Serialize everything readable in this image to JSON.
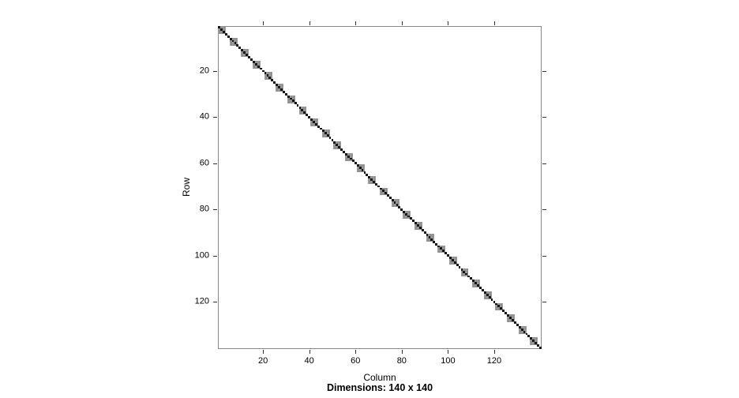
{
  "figure": {
    "xlabel": "Column",
    "ylabel": "Row",
    "caption": "Dimensions: 140 x 140"
  },
  "chart_data": {
    "type": "heatmap",
    "title": "",
    "subtitle": "Dimensions: 140 x 140",
    "xlabel": "Column",
    "ylabel": "Row",
    "n_rows": 140,
    "n_cols": 140,
    "xlim": [
      1,
      140
    ],
    "ylim": [
      1,
      140
    ],
    "x_ticks": [
      20,
      40,
      60,
      80,
      100,
      120
    ],
    "y_ticks": [
      20,
      40,
      60,
      80,
      100,
      120
    ],
    "grid": false,
    "legend": "none",
    "structure": "block-diagonal",
    "n_blocks": 28,
    "cells_per_block": 5,
    "gray_block_span_cells": 3,
    "black_diagonal_cells": 140,
    "colors": {
      "background": "#ffffff",
      "block_fill": "#9c9c9c",
      "block_fill_alt": "#8d8d8d",
      "diagonal_fill": "#161616",
      "box_border": "#888888",
      "tick": "#333333",
      "text": "#000000"
    }
  }
}
